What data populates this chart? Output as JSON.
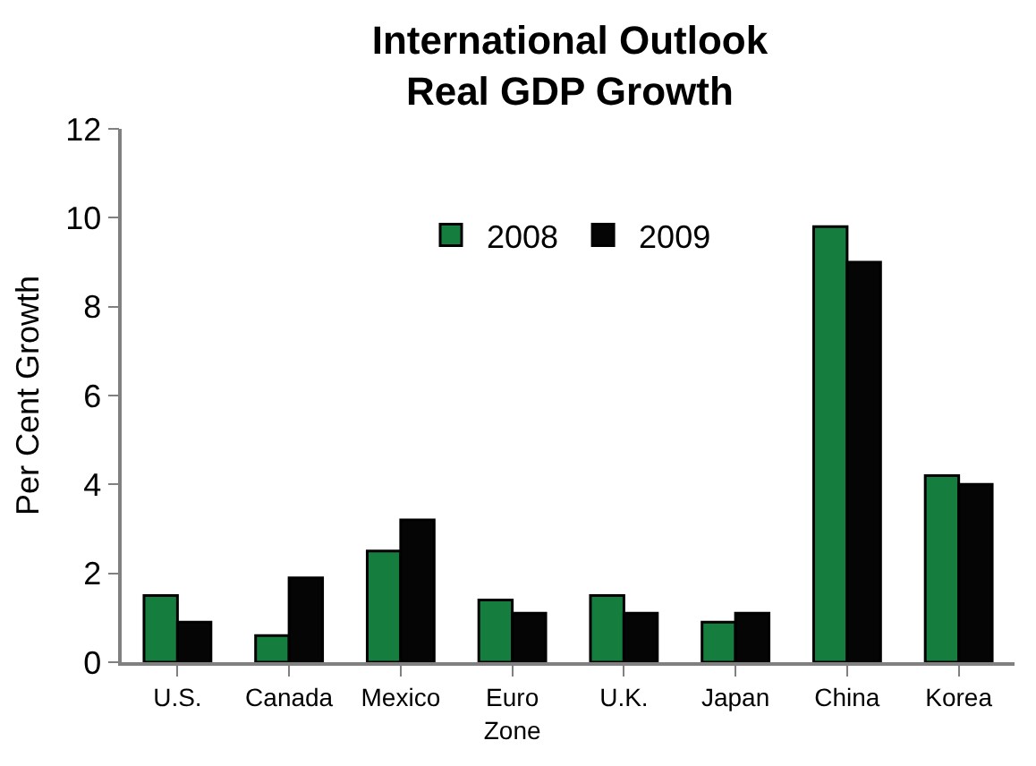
{
  "chart_data": {
    "type": "bar",
    "title": "International Outlook\nReal GDP Growth",
    "ylabel": "Per Cent Growth",
    "categories": [
      "U.S.",
      "Canada",
      "Mexico",
      "Euro\nZone",
      "U.K.",
      "Japan",
      "China",
      "Korea"
    ],
    "series": [
      {
        "name": "2008",
        "color": "#157d3e",
        "values": [
          1.5,
          0.6,
          2.5,
          1.4,
          1.5,
          0.9,
          9.8,
          4.2
        ]
      },
      {
        "name": "2009",
        "color": "#050505",
        "values": [
          0.9,
          1.9,
          3.2,
          1.1,
          1.1,
          1.1,
          9.0,
          4.0
        ]
      }
    ],
    "ylim": [
      0,
      12
    ],
    "yticks": [
      0,
      2,
      4,
      6,
      8,
      10,
      12
    ],
    "legend": "top"
  }
}
